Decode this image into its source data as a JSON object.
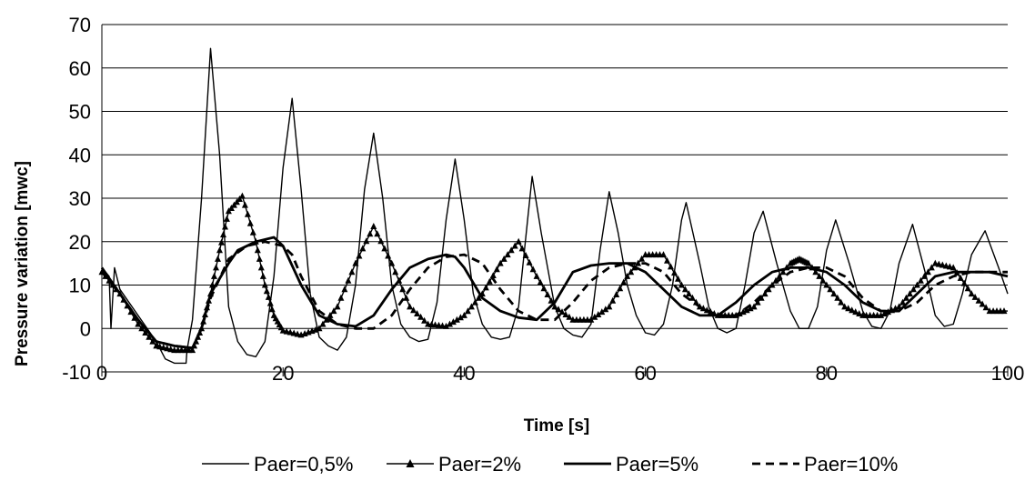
{
  "chart_data": {
    "type": "line",
    "title": "",
    "xlabel": "Time [s]",
    "ylabel": "Pressure variation [mwc]",
    "xlim": [
      0,
      100
    ],
    "ylim": [
      -10,
      70
    ],
    "x_ticks": [
      "0",
      "20",
      "40",
      "60",
      "80",
      "100"
    ],
    "y_ticks": [
      "-10",
      "0",
      "10",
      "20",
      "30",
      "40",
      "50",
      "60",
      "70"
    ],
    "grid": "horizontal",
    "legend_position": "bottom",
    "series": [
      {
        "name": "Paer=0,5%",
        "style": "thin-solid",
        "points": [
          [
            0,
            14
          ],
          [
            0.8,
            12
          ],
          [
            1,
            0
          ],
          [
            1.4,
            14
          ],
          [
            2,
            9
          ],
          [
            4,
            3
          ],
          [
            6,
            -3
          ],
          [
            7,
            -7
          ],
          [
            8,
            -8
          ],
          [
            9.3,
            -8
          ],
          [
            9.4,
            -5
          ],
          [
            10,
            2
          ],
          [
            11,
            30
          ],
          [
            12,
            64.5
          ],
          [
            13,
            40
          ],
          [
            14,
            5
          ],
          [
            15,
            -3
          ],
          [
            16,
            -6
          ],
          [
            17,
            -6.5
          ],
          [
            18,
            -3
          ],
          [
            19,
            12
          ],
          [
            20,
            37
          ],
          [
            21,
            53
          ],
          [
            22,
            32
          ],
          [
            23,
            8
          ],
          [
            24,
            -2
          ],
          [
            25,
            -4
          ],
          [
            26,
            -5
          ],
          [
            27,
            -2
          ],
          [
            28,
            10
          ],
          [
            29,
            32
          ],
          [
            30,
            45
          ],
          [
            31,
            30
          ],
          [
            32,
            10
          ],
          [
            33,
            1
          ],
          [
            34,
            -2
          ],
          [
            35,
            -3
          ],
          [
            36,
            -2.5
          ],
          [
            37,
            6
          ],
          [
            38,
            25
          ],
          [
            39,
            39
          ],
          [
            40,
            25
          ],
          [
            41,
            8
          ],
          [
            42,
            1
          ],
          [
            43,
            -2
          ],
          [
            44,
            -2.5
          ],
          [
            45,
            -2
          ],
          [
            46,
            5
          ],
          [
            47,
            25
          ],
          [
            47.5,
            35
          ],
          [
            48.5,
            22
          ],
          [
            50,
            5
          ],
          [
            51,
            0
          ],
          [
            52,
            -1.5
          ],
          [
            53,
            -2
          ],
          [
            54,
            1
          ],
          [
            55,
            18
          ],
          [
            56,
            31.5
          ],
          [
            57,
            22
          ],
          [
            58,
            10
          ],
          [
            59,
            3
          ],
          [
            60,
            -1
          ],
          [
            61,
            -1.5
          ],
          [
            62,
            1
          ],
          [
            63,
            10
          ],
          [
            64,
            25
          ],
          [
            64.5,
            29
          ],
          [
            66,
            15
          ],
          [
            67,
            5
          ],
          [
            68,
            0
          ],
          [
            69,
            -1
          ],
          [
            70,
            0
          ],
          [
            71,
            10
          ],
          [
            72,
            22
          ],
          [
            73,
            27
          ],
          [
            74.5,
            15
          ],
          [
            76,
            4
          ],
          [
            77,
            0
          ],
          [
            78,
            0
          ],
          [
            79,
            5
          ],
          [
            80,
            18
          ],
          [
            81,
            25
          ],
          [
            82.5,
            15
          ],
          [
            84,
            4
          ],
          [
            85,
            0.5
          ],
          [
            86,
            0
          ],
          [
            87,
            4
          ],
          [
            88,
            15
          ],
          [
            89.5,
            24
          ],
          [
            91,
            12
          ],
          [
            92,
            3
          ],
          [
            93,
            0.5
          ],
          [
            94,
            1
          ],
          [
            95,
            8
          ],
          [
            96,
            17
          ],
          [
            97.5,
            22.5
          ],
          [
            99,
            14
          ],
          [
            100,
            8
          ]
        ]
      },
      {
        "name": "Paer=2%",
        "style": "solid-triangle-markers",
        "points": [
          [
            0,
            13
          ],
          [
            2,
            8
          ],
          [
            4,
            1
          ],
          [
            6,
            -4
          ],
          [
            8,
            -5
          ],
          [
            10,
            -5
          ],
          [
            11,
            0
          ],
          [
            12,
            8
          ],
          [
            13,
            18
          ],
          [
            14,
            27
          ],
          [
            15.5,
            30.5
          ],
          [
            17,
            20
          ],
          [
            18,
            10
          ],
          [
            19,
            3
          ],
          [
            20,
            -0.5
          ],
          [
            22,
            -1.5
          ],
          [
            24,
            0
          ],
          [
            26,
            5
          ],
          [
            28,
            15
          ],
          [
            30,
            23.5
          ],
          [
            32,
            15
          ],
          [
            34,
            5
          ],
          [
            36,
            1
          ],
          [
            38,
            0.5
          ],
          [
            40,
            3
          ],
          [
            42,
            8
          ],
          [
            44,
            15
          ],
          [
            46,
            20
          ],
          [
            48,
            12
          ],
          [
            50,
            5
          ],
          [
            52,
            2
          ],
          [
            54,
            2
          ],
          [
            56,
            5
          ],
          [
            58,
            12
          ],
          [
            60,
            17
          ],
          [
            62,
            17
          ],
          [
            64,
            10
          ],
          [
            66,
            5
          ],
          [
            68,
            3
          ],
          [
            70,
            3
          ],
          [
            72,
            5
          ],
          [
            74,
            10
          ],
          [
            76,
            15
          ],
          [
            77,
            16
          ],
          [
            78,
            15
          ],
          [
            80,
            10
          ],
          [
            82,
            5
          ],
          [
            84,
            3
          ],
          [
            86,
            3
          ],
          [
            88,
            5
          ],
          [
            90,
            10
          ],
          [
            92,
            15
          ],
          [
            94,
            14
          ],
          [
            96,
            8
          ],
          [
            98,
            4
          ],
          [
            100,
            4
          ]
        ]
      },
      {
        "name": "Paer=5%",
        "style": "thick-solid",
        "points": [
          [
            0,
            14
          ],
          [
            2,
            8
          ],
          [
            4,
            2
          ],
          [
            6,
            -3
          ],
          [
            8,
            -4
          ],
          [
            10,
            -4.5
          ],
          [
            11,
            0
          ],
          [
            12,
            8
          ],
          [
            14,
            15
          ],
          [
            15,
            18
          ],
          [
            17,
            20
          ],
          [
            19,
            21
          ],
          [
            20,
            19
          ],
          [
            22,
            10
          ],
          [
            24,
            3
          ],
          [
            26,
            1
          ],
          [
            28,
            0.5
          ],
          [
            30,
            3
          ],
          [
            32,
            9
          ],
          [
            34,
            14
          ],
          [
            36,
            16
          ],
          [
            38,
            17
          ],
          [
            39,
            16.5
          ],
          [
            40,
            14
          ],
          [
            42,
            7
          ],
          [
            44,
            4
          ],
          [
            46,
            2.5
          ],
          [
            48,
            2
          ],
          [
            50,
            6
          ],
          [
            52,
            13
          ],
          [
            54,
            14.5
          ],
          [
            56,
            15
          ],
          [
            58,
            15
          ],
          [
            60,
            13
          ],
          [
            62,
            9
          ],
          [
            64,
            5
          ],
          [
            66,
            3
          ],
          [
            68,
            3
          ],
          [
            70,
            6
          ],
          [
            72,
            10
          ],
          [
            74,
            13
          ],
          [
            76,
            14
          ],
          [
            78,
            14
          ],
          [
            80,
            13
          ],
          [
            82,
            10
          ],
          [
            84,
            6
          ],
          [
            86,
            4
          ],
          [
            88,
            4
          ],
          [
            90,
            8
          ],
          [
            92,
            12
          ],
          [
            94,
            13
          ],
          [
            96,
            13
          ],
          [
            98,
            13
          ],
          [
            100,
            12
          ]
        ]
      },
      {
        "name": "Paer=10%",
        "style": "thick-dashed",
        "points": [
          [
            0,
            13
          ],
          [
            2,
            8
          ],
          [
            4,
            2
          ],
          [
            6,
            -3
          ],
          [
            8,
            -4
          ],
          [
            10,
            -4.5
          ],
          [
            11,
            0
          ],
          [
            12,
            7
          ],
          [
            14,
            16
          ],
          [
            16,
            19
          ],
          [
            18,
            20
          ],
          [
            20,
            19
          ],
          [
            21,
            17
          ],
          [
            22,
            12
          ],
          [
            24,
            4
          ],
          [
            26,
            1
          ],
          [
            28,
            0
          ],
          [
            30,
            0
          ],
          [
            32,
            3
          ],
          [
            34,
            9
          ],
          [
            36,
            14
          ],
          [
            38,
            16.5
          ],
          [
            40,
            17
          ],
          [
            42,
            15
          ],
          [
            44,
            9
          ],
          [
            46,
            4
          ],
          [
            48,
            2
          ],
          [
            50,
            2
          ],
          [
            52,
            6
          ],
          [
            54,
            11
          ],
          [
            56,
            14
          ],
          [
            58,
            15
          ],
          [
            60,
            15
          ],
          [
            62,
            13
          ],
          [
            64,
            8
          ],
          [
            66,
            5
          ],
          [
            68,
            3
          ],
          [
            70,
            3
          ],
          [
            72,
            6
          ],
          [
            74,
            10
          ],
          [
            76,
            13
          ],
          [
            78,
            14
          ],
          [
            80,
            14
          ],
          [
            82,
            12
          ],
          [
            84,
            7
          ],
          [
            86,
            4
          ],
          [
            88,
            4
          ],
          [
            90,
            6
          ],
          [
            92,
            10
          ],
          [
            94,
            12
          ],
          [
            96,
            13
          ],
          [
            98,
            13
          ],
          [
            100,
            13
          ]
        ]
      }
    ]
  }
}
